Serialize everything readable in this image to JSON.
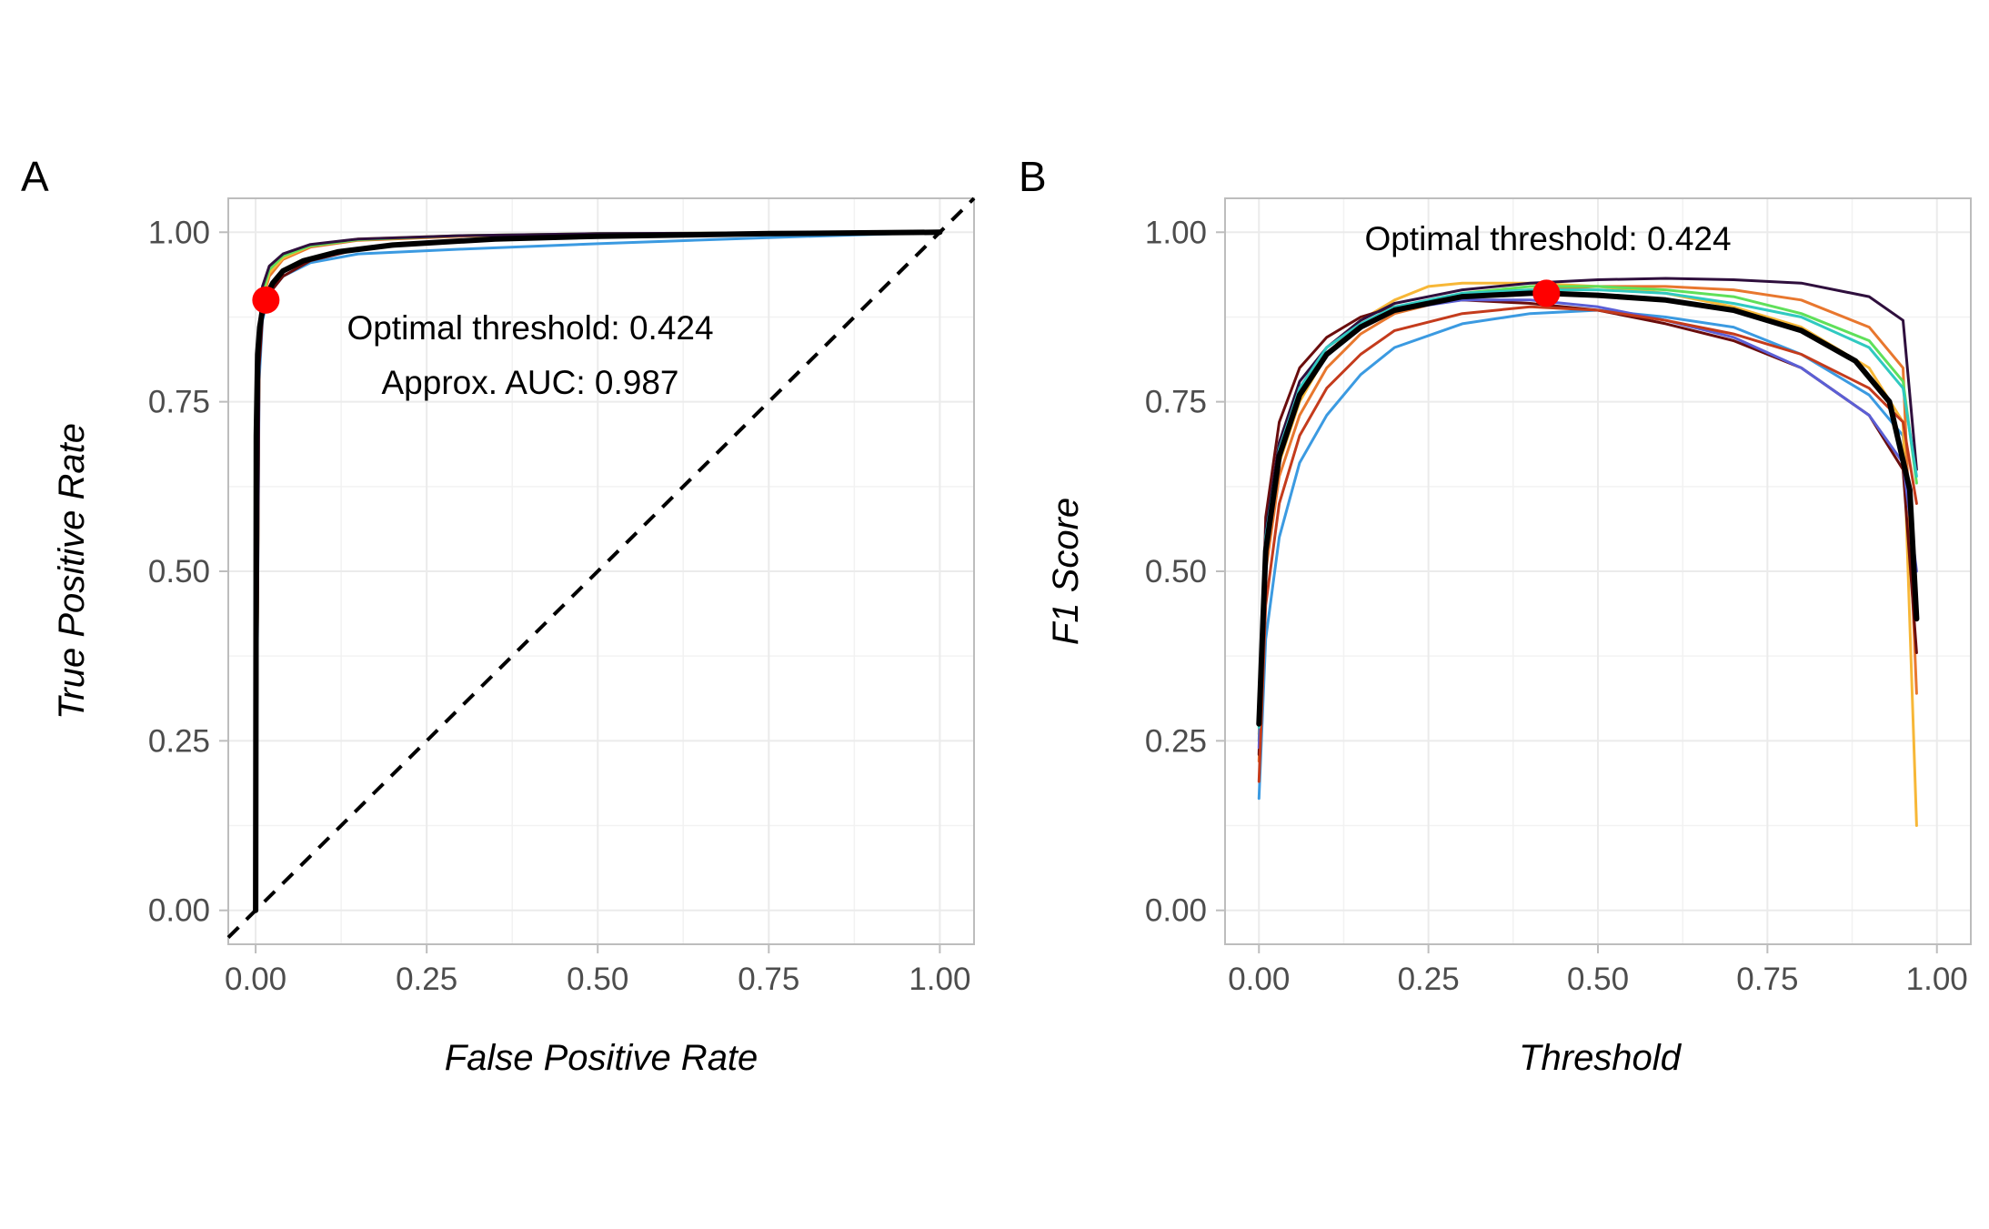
{
  "chart_data": [
    {
      "panel": "A",
      "type": "line",
      "xlabel": "False Positive Rate",
      "ylabel": "True Positive Rate",
      "xlim": [
        -0.04,
        1.05
      ],
      "ylim": [
        -0.05,
        1.05
      ],
      "xticks": [
        "0.00",
        "0.25",
        "0.50",
        "0.75",
        "1.00"
      ],
      "yticks": [
        "0.00",
        "0.25",
        "0.50",
        "0.75",
        "1.00"
      ],
      "grid": true,
      "reference_line": {
        "x": [
          -0.04,
          1.05
        ],
        "y": [
          -0.04,
          1.05
        ],
        "style": "dashed"
      },
      "fold_series": [
        {
          "color": "#3b9ae1",
          "x": [
            0.0,
            0.005,
            0.01,
            0.02,
            0.04,
            0.08,
            0.15,
            0.3,
            0.5,
            0.75,
            1.0
          ],
          "y": [
            0.0,
            0.78,
            0.87,
            0.91,
            0.935,
            0.955,
            0.968,
            0.975,
            0.983,
            0.992,
            1.0
          ]
        },
        {
          "color": "#e8772e",
          "x": [
            0.0,
            0.005,
            0.01,
            0.02,
            0.04,
            0.08,
            0.15,
            0.3,
            0.5,
            0.75,
            1.0
          ],
          "y": [
            0.0,
            0.82,
            0.9,
            0.935,
            0.96,
            0.978,
            0.988,
            0.994,
            0.997,
            0.999,
            1.0
          ]
        },
        {
          "color": "#f7b737",
          "x": [
            0.0,
            0.005,
            0.01,
            0.02,
            0.04,
            0.08,
            0.15,
            0.3,
            0.5,
            0.75,
            1.0
          ],
          "y": [
            0.0,
            0.83,
            0.905,
            0.94,
            0.962,
            0.98,
            0.99,
            0.995,
            0.998,
            0.999,
            1.0
          ]
        },
        {
          "color": "#5fe05a",
          "x": [
            0.0,
            0.005,
            0.01,
            0.02,
            0.04,
            0.08,
            0.15,
            0.3,
            0.5,
            0.75,
            1.0
          ],
          "y": [
            0.0,
            0.84,
            0.91,
            0.945,
            0.965,
            0.98,
            0.989,
            0.995,
            0.998,
            0.999,
            1.0
          ]
        },
        {
          "color": "#6a0d0d",
          "x": [
            0.0,
            0.005,
            0.01,
            0.02,
            0.04,
            0.08,
            0.15,
            0.3,
            0.5,
            0.75,
            1.0
          ],
          "y": [
            0.0,
            0.8,
            0.875,
            0.91,
            0.935,
            0.958,
            0.975,
            0.988,
            0.995,
            0.998,
            1.0
          ]
        },
        {
          "color": "#2f0f3d",
          "x": [
            0.0,
            0.005,
            0.01,
            0.02,
            0.04,
            0.08,
            0.15,
            0.3,
            0.5,
            0.75,
            1.0
          ],
          "y": [
            0.0,
            0.85,
            0.92,
            0.95,
            0.968,
            0.982,
            0.99,
            0.995,
            0.998,
            0.999,
            1.0
          ]
        }
      ],
      "mean_series": {
        "color": "#000000",
        "x": [
          0.0,
          0.001,
          0.003,
          0.006,
          0.01,
          0.015,
          0.025,
          0.04,
          0.07,
          0.12,
          0.2,
          0.35,
          0.5,
          0.75,
          1.0
        ],
        "y": [
          0.0,
          0.7,
          0.82,
          0.86,
          0.885,
          0.905,
          0.925,
          0.943,
          0.958,
          0.971,
          0.981,
          0.99,
          0.994,
          0.998,
          1.0
        ]
      },
      "optimal_point": {
        "x": 0.015,
        "y": 0.9,
        "color": "#ff0000"
      },
      "annotations": [
        "Optimal threshold: 0.424",
        "Approx. AUC: 0.987"
      ]
    },
    {
      "panel": "B",
      "type": "line",
      "xlabel": "Threshold",
      "ylabel": "F1 Score",
      "xlim": [
        -0.05,
        1.05
      ],
      "ylim": [
        -0.05,
        1.05
      ],
      "xticks": [
        "0.00",
        "0.25",
        "0.50",
        "0.75",
        "1.00"
      ],
      "yticks": [
        "0.00",
        "0.25",
        "0.50",
        "0.75",
        "1.00"
      ],
      "grid": true,
      "fold_series": [
        {
          "color": "#3b9ae1",
          "x": [
            0.0,
            0.01,
            0.03,
            0.06,
            0.1,
            0.15,
            0.2,
            0.3,
            0.4,
            0.5,
            0.6,
            0.7,
            0.8,
            0.9,
            0.95,
            0.97
          ],
          "y": [
            0.165,
            0.4,
            0.55,
            0.66,
            0.73,
            0.79,
            0.83,
            0.865,
            0.88,
            0.885,
            0.875,
            0.86,
            0.82,
            0.76,
            0.7,
            0.45
          ]
        },
        {
          "color": "#e8772e",
          "x": [
            0.0,
            0.01,
            0.03,
            0.06,
            0.1,
            0.15,
            0.2,
            0.3,
            0.4,
            0.5,
            0.6,
            0.7,
            0.8,
            0.9,
            0.95,
            0.97
          ],
          "y": [
            0.22,
            0.5,
            0.64,
            0.73,
            0.8,
            0.85,
            0.88,
            0.905,
            0.915,
            0.92,
            0.92,
            0.915,
            0.9,
            0.86,
            0.8,
            0.32
          ]
        },
        {
          "color": "#f7b737",
          "x": [
            0.0,
            0.01,
            0.03,
            0.06,
            0.1,
            0.15,
            0.2,
            0.25,
            0.3,
            0.4,
            0.5,
            0.6,
            0.7,
            0.8,
            0.9,
            0.95,
            0.97
          ],
          "y": [
            0.26,
            0.52,
            0.66,
            0.75,
            0.82,
            0.87,
            0.9,
            0.92,
            0.925,
            0.925,
            0.92,
            0.91,
            0.89,
            0.86,
            0.8,
            0.72,
            0.125
          ]
        },
        {
          "color": "#5fe05a",
          "x": [
            0.0,
            0.01,
            0.03,
            0.06,
            0.1,
            0.15,
            0.2,
            0.3,
            0.4,
            0.5,
            0.6,
            0.7,
            0.8,
            0.9,
            0.95,
            0.97
          ],
          "y": [
            0.25,
            0.53,
            0.67,
            0.76,
            0.82,
            0.86,
            0.885,
            0.91,
            0.92,
            0.92,
            0.915,
            0.905,
            0.88,
            0.84,
            0.78,
            0.63
          ]
        },
        {
          "color": "#6a0d0d",
          "x": [
            0.0,
            0.01,
            0.03,
            0.06,
            0.1,
            0.15,
            0.2,
            0.3,
            0.4,
            0.5,
            0.6,
            0.7,
            0.8,
            0.9,
            0.95,
            0.97
          ],
          "y": [
            0.23,
            0.58,
            0.72,
            0.8,
            0.845,
            0.875,
            0.89,
            0.9,
            0.895,
            0.885,
            0.865,
            0.84,
            0.8,
            0.73,
            0.65,
            0.38
          ]
        },
        {
          "color": "#2f0f3d",
          "x": [
            0.0,
            0.01,
            0.03,
            0.06,
            0.1,
            0.15,
            0.2,
            0.3,
            0.4,
            0.5,
            0.6,
            0.7,
            0.8,
            0.9,
            0.95,
            0.97
          ],
          "y": [
            0.28,
            0.56,
            0.69,
            0.78,
            0.83,
            0.87,
            0.895,
            0.915,
            0.925,
            0.93,
            0.932,
            0.93,
            0.925,
            0.905,
            0.87,
            0.65
          ]
        },
        {
          "color": "#5b5fd6",
          "x": [
            0.0,
            0.01,
            0.03,
            0.06,
            0.1,
            0.15,
            0.2,
            0.3,
            0.4,
            0.5,
            0.6,
            0.7,
            0.8,
            0.9,
            0.95,
            0.97
          ],
          "y": [
            0.24,
            0.54,
            0.68,
            0.77,
            0.83,
            0.865,
            0.885,
            0.9,
            0.9,
            0.89,
            0.87,
            0.845,
            0.8,
            0.73,
            0.66,
            0.5
          ]
        },
        {
          "color": "#c43b1c",
          "x": [
            0.0,
            0.01,
            0.03,
            0.06,
            0.1,
            0.15,
            0.2,
            0.3,
            0.4,
            0.5,
            0.6,
            0.7,
            0.8,
            0.9,
            0.95,
            0.97
          ],
          "y": [
            0.19,
            0.45,
            0.6,
            0.7,
            0.77,
            0.82,
            0.855,
            0.88,
            0.89,
            0.885,
            0.87,
            0.85,
            0.82,
            0.77,
            0.72,
            0.6
          ]
        },
        {
          "color": "#30c9c0",
          "x": [
            0.0,
            0.01,
            0.03,
            0.06,
            0.1,
            0.15,
            0.2,
            0.3,
            0.4,
            0.5,
            0.6,
            0.7,
            0.8,
            0.9,
            0.95,
            0.97
          ],
          "y": [
            0.27,
            0.55,
            0.68,
            0.77,
            0.83,
            0.865,
            0.89,
            0.91,
            0.915,
            0.915,
            0.91,
            0.895,
            0.875,
            0.83,
            0.77,
            0.64
          ]
        }
      ],
      "mean_series": {
        "color": "#000000",
        "x": [
          0.0,
          0.01,
          0.03,
          0.06,
          0.1,
          0.15,
          0.2,
          0.3,
          0.4,
          0.424,
          0.5,
          0.6,
          0.7,
          0.8,
          0.88,
          0.93,
          0.96,
          0.97
        ],
        "y": [
          0.275,
          0.53,
          0.67,
          0.76,
          0.82,
          0.86,
          0.885,
          0.905,
          0.91,
          0.91,
          0.907,
          0.9,
          0.885,
          0.855,
          0.81,
          0.75,
          0.62,
          0.43
        ]
      },
      "optimal_point": {
        "x": 0.424,
        "y": 0.91,
        "color": "#ff0000"
      },
      "annotations": [
        "Optimal threshold: 0.424"
      ]
    }
  ],
  "panels": {
    "a": {
      "letter": "A"
    },
    "b": {
      "letter": "B"
    }
  }
}
